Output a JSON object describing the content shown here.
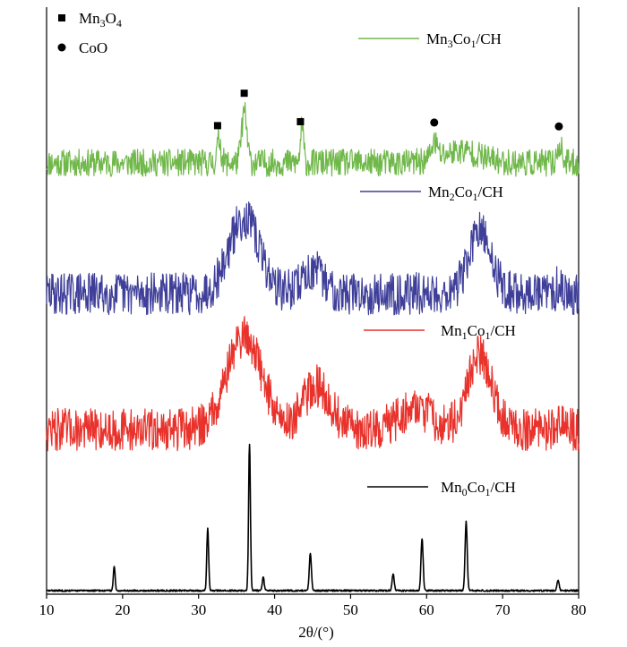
{
  "chart_data": {
    "type": "line",
    "title": "",
    "xlabel": "2θ/(°)",
    "ylabel": "",
    "xlim": [
      10,
      80
    ],
    "xticks": [
      10,
      20,
      30,
      40,
      50,
      60,
      70,
      80
    ],
    "grid": false,
    "legend_position": "inline",
    "marker_legend": [
      {
        "symbol": "square",
        "label": "Mn3O4",
        "base": "Mn",
        "sub1": "3",
        "mid": "O",
        "sub2": "4"
      },
      {
        "symbol": "circle",
        "label": "CoO",
        "base": "CoO",
        "sub1": "",
        "mid": "",
        "sub2": ""
      }
    ],
    "series": [
      {
        "name": "Mn3Co1/CH",
        "color": "#70b84a",
        "label_parts": [
          "Mn",
          "3",
          "Co",
          "1",
          "/CH"
        ],
        "profile": "noisy",
        "baseline": 0.0,
        "noise": 1.0,
        "peaks": [
          {
            "x": 32.7,
            "h": 3.0,
            "w": 0.25
          },
          {
            "x": 36.0,
            "h": 6.2,
            "w": 0.35
          },
          {
            "x": 43.6,
            "h": 4.4,
            "w": 0.2
          },
          {
            "x": 61.0,
            "h": 2.0,
            "w": 0.4
          },
          {
            "x": 64.5,
            "h": 1.5,
            "w": 2.5
          },
          {
            "x": 77.5,
            "h": 2.2,
            "w": 0.3
          }
        ],
        "markers": [
          {
            "x": 32.5,
            "symbol": "square"
          },
          {
            "x": 36.0,
            "symbol": "square"
          },
          {
            "x": 43.4,
            "symbol": "square"
          },
          {
            "x": 61.0,
            "symbol": "circle"
          },
          {
            "x": 77.4,
            "symbol": "circle"
          }
        ]
      },
      {
        "name": "Mn2Co1/CH",
        "color": "#3f3f9a",
        "label_parts": [
          "Mn",
          "2",
          "Co",
          "1",
          "/CH"
        ],
        "profile": "noisy",
        "baseline": 0.0,
        "noise": 1.0,
        "peaks": [
          {
            "x": 36.0,
            "h": 6.0,
            "w": 2.0
          },
          {
            "x": 45.0,
            "h": 1.8,
            "w": 1.5
          },
          {
            "x": 67.0,
            "h": 4.8,
            "w": 1.5
          },
          {
            "x": 77.5,
            "h": 1.0,
            "w": 0.3
          }
        ],
        "markers": []
      },
      {
        "name": "Mn1Co1/CH",
        "color": "#e8322b",
        "label_parts": [
          "Mn",
          "1",
          "Co",
          "1",
          "/CH"
        ],
        "profile": "noisy",
        "baseline": 0.0,
        "noise": 1.0,
        "peaks": [
          {
            "x": 36.0,
            "h": 7.5,
            "w": 2.3
          },
          {
            "x": 45.5,
            "h": 3.5,
            "w": 1.8
          },
          {
            "x": 58.5,
            "h": 1.8,
            "w": 2.0
          },
          {
            "x": 67.0,
            "h": 6.0,
            "w": 1.6
          },
          {
            "x": 77.5,
            "h": 1.0,
            "w": 0.3
          }
        ],
        "markers": []
      },
      {
        "name": "Mn0Co1/CH",
        "color": "#000000",
        "label_parts": [
          "Mn",
          "0",
          "Co",
          "1",
          "/CH"
        ],
        "profile": "sharp",
        "baseline": 0.0,
        "noise": 0.25,
        "peaks": [
          {
            "x": 18.9,
            "h": 2.6,
            "w": 0.12
          },
          {
            "x": 31.2,
            "h": 6.8,
            "w": 0.12
          },
          {
            "x": 36.7,
            "h": 15.8,
            "w": 0.12
          },
          {
            "x": 38.5,
            "h": 1.5,
            "w": 0.12
          },
          {
            "x": 44.7,
            "h": 4.0,
            "w": 0.14
          },
          {
            "x": 55.6,
            "h": 1.8,
            "w": 0.14
          },
          {
            "x": 59.4,
            "h": 5.6,
            "w": 0.14
          },
          {
            "x": 65.2,
            "h": 7.4,
            "w": 0.14
          },
          {
            "x": 77.3,
            "h": 1.1,
            "w": 0.14
          }
        ],
        "markers": []
      }
    ]
  }
}
